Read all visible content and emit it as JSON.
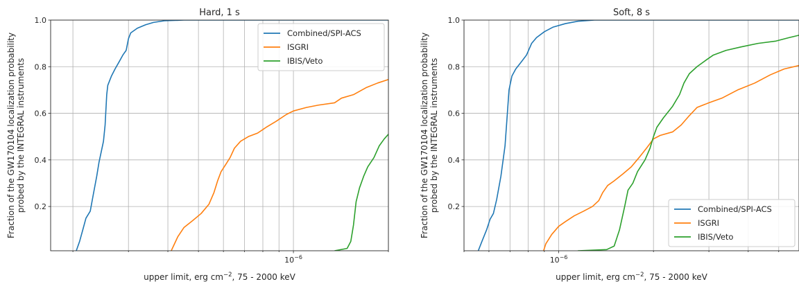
{
  "chart_data": [
    {
      "type": "line",
      "title": "Hard, 1 s",
      "xlabel": "upper limit, erg cm$^{-2}$, 75 - 2000 keV",
      "xlabel_main": "upper limit, erg cm",
      "xlabel_sup": "−2",
      "xlabel_tail": ", 75 - 2000 keV",
      "ylabel_line1": "Fraction of the GW170104 localization probability",
      "ylabel_line2": "probed by the INTEGRAL instruments",
      "x_scale": "log",
      "xlim": [
        1.7e-07,
        2e-06
      ],
      "ylim": [
        0.01,
        1.0
      ],
      "y_ticks": [
        "0.2",
        "0.4",
        "0.6",
        "0.8",
        "1.0"
      ],
      "x_tick_base": "10",
      "x_tick_exp": "−6",
      "x_tick_value": 1e-06,
      "grid": true,
      "legend_position": "top-right",
      "series": [
        {
          "name": "Combined/SPI-ACS",
          "color": "#1f77b4",
          "points": [
            [
              2.05e-07,
              0.01
            ],
            [
              2.1e-07,
              0.05
            ],
            [
              2.15e-07,
              0.1
            ],
            [
              2.2e-07,
              0.15
            ],
            [
              2.27e-07,
              0.18
            ],
            [
              2.32e-07,
              0.25
            ],
            [
              2.38e-07,
              0.33
            ],
            [
              2.42e-07,
              0.39
            ],
            [
              2.5e-07,
              0.48
            ],
            [
              2.53e-07,
              0.55
            ],
            [
              2.56e-07,
              0.68
            ],
            [
              2.58e-07,
              0.72
            ],
            [
              2.65e-07,
              0.76
            ],
            [
              2.72e-07,
              0.79
            ],
            [
              2.8e-07,
              0.82
            ],
            [
              2.88e-07,
              0.85
            ],
            [
              2.95e-07,
              0.87
            ],
            [
              3e-07,
              0.92
            ],
            [
              3.05e-07,
              0.945
            ],
            [
              3.2e-07,
              0.965
            ],
            [
              3.4e-07,
              0.98
            ],
            [
              3.6e-07,
              0.99
            ],
            [
              3.9e-07,
              0.997
            ],
            [
              4.5e-07,
              1.0
            ],
            [
              2e-06,
              1.0
            ]
          ]
        },
        {
          "name": "ISGRI",
          "color": "#ff7f0e",
          "points": [
            [
              4.1e-07,
              0.01
            ],
            [
              4.3e-07,
              0.07
            ],
            [
              4.5e-07,
              0.11
            ],
            [
              4.8e-07,
              0.14
            ],
            [
              5.1e-07,
              0.17
            ],
            [
              5.4e-07,
              0.21
            ],
            [
              5.6e-07,
              0.26
            ],
            [
              5.75e-07,
              0.31
            ],
            [
              5.9e-07,
              0.35
            ],
            [
              6.1e-07,
              0.38
            ],
            [
              6.3e-07,
              0.41
            ],
            [
              6.5e-07,
              0.45
            ],
            [
              6.8e-07,
              0.48
            ],
            [
              7.2e-07,
              0.5
            ],
            [
              7.7e-07,
              0.515
            ],
            [
              8.2e-07,
              0.54
            ],
            [
              8.8e-07,
              0.565
            ],
            [
              9.5e-07,
              0.595
            ],
            [
              1e-06,
              0.61
            ],
            [
              1.1e-06,
              0.625
            ],
            [
              1.2e-06,
              0.635
            ],
            [
              1.35e-06,
              0.645
            ],
            [
              1.42e-06,
              0.665
            ],
            [
              1.55e-06,
              0.68
            ],
            [
              1.7e-06,
              0.71
            ],
            [
              1.85e-06,
              0.73
            ],
            [
              2e-06,
              0.745
            ]
          ]
        },
        {
          "name": "IBIS/Veto",
          "color": "#2ca02c",
          "points": [
            [
              1.35e-06,
              0.01
            ],
            [
              1.48e-06,
              0.02
            ],
            [
              1.52e-06,
              0.05
            ],
            [
              1.55e-06,
              0.12
            ],
            [
              1.58e-06,
              0.22
            ],
            [
              1.62e-06,
              0.28
            ],
            [
              1.67e-06,
              0.33
            ],
            [
              1.72e-06,
              0.37
            ],
            [
              1.8e-06,
              0.41
            ],
            [
              1.87e-06,
              0.46
            ],
            [
              1.94e-06,
              0.49
            ],
            [
              2e-06,
              0.51
            ]
          ]
        }
      ]
    },
    {
      "type": "line",
      "title": "Soft, 8 s",
      "xlabel": "upper limit, erg cm$^{-2}$, 75 - 2000 keV",
      "xlabel_main": "upper limit, erg cm",
      "xlabel_sup": "−2",
      "xlabel_tail": ", 75 - 2000 keV",
      "ylabel_line1": "Fraction of the GW170104 localization probability",
      "ylabel_line2": "probed by the INTEGRAL instruments",
      "x_scale": "log",
      "xlim": [
        5e-07,
        5.8e-06
      ],
      "ylim": [
        0.01,
        1.0
      ],
      "y_ticks": [
        "0.2",
        "0.4",
        "0.6",
        "0.8",
        "1.0"
      ],
      "x_tick_base": "10",
      "x_tick_exp": "−6",
      "x_tick_value": 1e-06,
      "grid": true,
      "legend_position": "bottom-right",
      "series": [
        {
          "name": "Combined/SPI-ACS",
          "color": "#1f77b4",
          "points": [
            [
              5.55e-07,
              0.01
            ],
            [
              5.7e-07,
              0.05
            ],
            [
              5.9e-07,
              0.1
            ],
            [
              6.05e-07,
              0.145
            ],
            [
              6.2e-07,
              0.17
            ],
            [
              6.35e-07,
              0.23
            ],
            [
              6.55e-07,
              0.33
            ],
            [
              6.75e-07,
              0.46
            ],
            [
              6.85e-07,
              0.58
            ],
            [
              6.95e-07,
              0.7
            ],
            [
              7.1e-07,
              0.76
            ],
            [
              7.3e-07,
              0.79
            ],
            [
              7.6e-07,
              0.82
            ],
            [
              7.9e-07,
              0.85
            ],
            [
              8.2e-07,
              0.9
            ],
            [
              8.5e-07,
              0.925
            ],
            [
              9e-07,
              0.95
            ],
            [
              9.6e-07,
              0.97
            ],
            [
              1.05e-06,
              0.985
            ],
            [
              1.15e-06,
              0.995
            ],
            [
              1.3e-06,
              1.0
            ],
            [
              5.8e-06,
              1.0
            ]
          ]
        },
        {
          "name": "ISGRI",
          "color": "#ff7f0e",
          "points": [
            [
              8.95e-07,
              0.01
            ],
            [
              9.1e-07,
              0.04
            ],
            [
              9.5e-07,
              0.08
            ],
            [
              1e-06,
              0.115
            ],
            [
              1.05e-06,
              0.135
            ],
            [
              1.12e-06,
              0.16
            ],
            [
              1.2e-06,
              0.18
            ],
            [
              1.28e-06,
              0.2
            ],
            [
              1.34e-06,
              0.225
            ],
            [
              1.38e-06,
              0.26
            ],
            [
              1.43e-06,
              0.29
            ],
            [
              1.5e-06,
              0.31
            ],
            [
              1.6e-06,
              0.34
            ],
            [
              1.7e-06,
              0.37
            ],
            [
              1.8e-06,
              0.41
            ],
            [
              1.9e-06,
              0.45
            ],
            [
              2e-06,
              0.49
            ],
            [
              2.1e-06,
              0.505
            ],
            [
              2.3e-06,
              0.52
            ],
            [
              2.45e-06,
              0.55
            ],
            [
              2.6e-06,
              0.59
            ],
            [
              2.75e-06,
              0.625
            ],
            [
              3e-06,
              0.645
            ],
            [
              3.3e-06,
              0.665
            ],
            [
              3.7e-06,
              0.7
            ],
            [
              4.2e-06,
              0.73
            ],
            [
              4.7e-06,
              0.765
            ],
            [
              5.2e-06,
              0.79
            ],
            [
              5.8e-06,
              0.805
            ]
          ]
        },
        {
          "name": "IBIS/Veto",
          "color": "#2ca02c",
          "points": [
            [
              1.15e-06,
              0.01
            ],
            [
              1.42e-06,
              0.015
            ],
            [
              1.5e-06,
              0.03
            ],
            [
              1.56e-06,
              0.1
            ],
            [
              1.62e-06,
              0.2
            ],
            [
              1.66e-06,
              0.27
            ],
            [
              1.72e-06,
              0.3
            ],
            [
              1.78e-06,
              0.35
            ],
            [
              1.88e-06,
              0.4
            ],
            [
              1.95e-06,
              0.45
            ],
            [
              2e-06,
              0.5
            ],
            [
              2.05e-06,
              0.54
            ],
            [
              2.15e-06,
              0.58
            ],
            [
              2.3e-06,
              0.63
            ],
            [
              2.42e-06,
              0.68
            ],
            [
              2.5e-06,
              0.73
            ],
            [
              2.6e-06,
              0.77
            ],
            [
              2.75e-06,
              0.8
            ],
            [
              2.95e-06,
              0.83
            ],
            [
              3.1e-06,
              0.85
            ],
            [
              3.4e-06,
              0.87
            ],
            [
              3.8e-06,
              0.885
            ],
            [
              4.3e-06,
              0.9
            ],
            [
              4.9e-06,
              0.91
            ],
            [
              5.4e-06,
              0.925
            ],
            [
              5.8e-06,
              0.935
            ]
          ]
        }
      ]
    }
  ]
}
